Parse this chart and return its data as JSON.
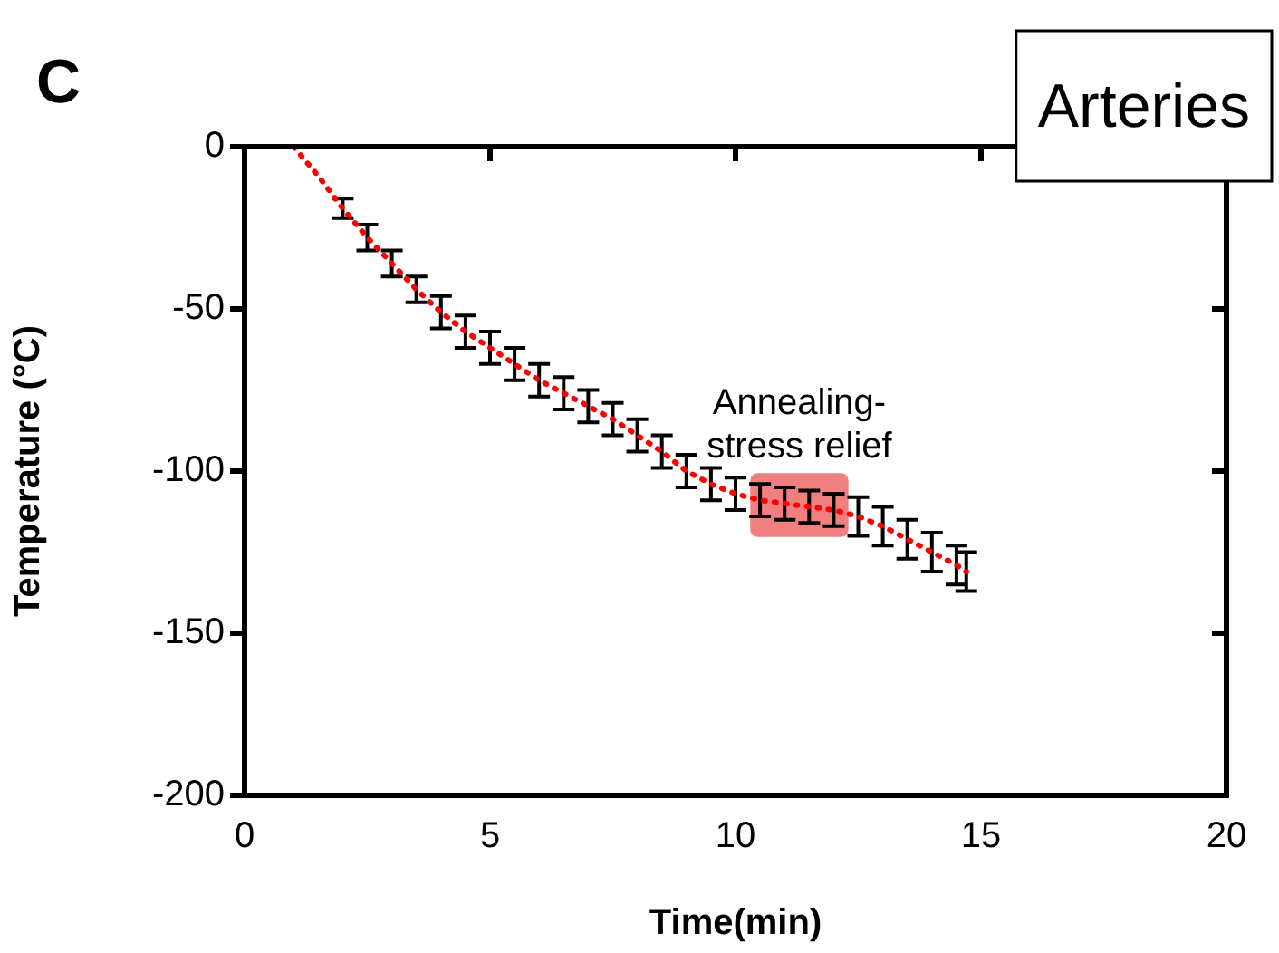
{
  "chart_data": {
    "type": "line",
    "title": "Arteries",
    "xlabel": "Time(min)",
    "ylabel": "Temperature (°C)",
    "annotations": [
      "C"
    ],
    "x": [
      1,
      1.5,
      2,
      2.5,
      3,
      3.5,
      4,
      4.5,
      5,
      5.5,
      6,
      6.5,
      7,
      7.5,
      8,
      8.5,
      9,
      9.5,
      10,
      10.5,
      11,
      11.5,
      12,
      12.5,
      13,
      13.5,
      14,
      14.5,
      14.7
    ],
    "series": [
      {
        "color": "#ff0000",
        "values": [
          0,
          -9,
          -19,
          -28,
          -36,
          -44,
          -51,
          -57,
          -62,
          -67,
          -72,
          -76,
          -80,
          -84,
          -89,
          -94,
          -100,
          -104,
          -107,
          -109,
          -110,
          -111,
          -112,
          -114,
          -117,
          -121,
          -125,
          -129,
          -131
        ],
        "errors": [
          null,
          null,
          3,
          4,
          4,
          4,
          5,
          5,
          5,
          5,
          5,
          5,
          5,
          5,
          5,
          5,
          5,
          5,
          5,
          5,
          5,
          5,
          5,
          6,
          6,
          6,
          6,
          6,
          6
        ]
      }
    ],
    "bands": [
      {
        "axis": "x",
        "from": 10.3,
        "to": 12.3,
        "label": "Annealing-stress relief",
        "color": "#f08080"
      }
    ],
    "xlim": [
      0,
      20
    ],
    "xticks": [
      0,
      5,
      10,
      15,
      20
    ],
    "ylim": [
      -200,
      0
    ],
    "yticks": [
      -200,
      -150,
      -100,
      -50,
      0
    ],
    "grid": false,
    "legend": false,
    "line_style": "dotted"
  }
}
